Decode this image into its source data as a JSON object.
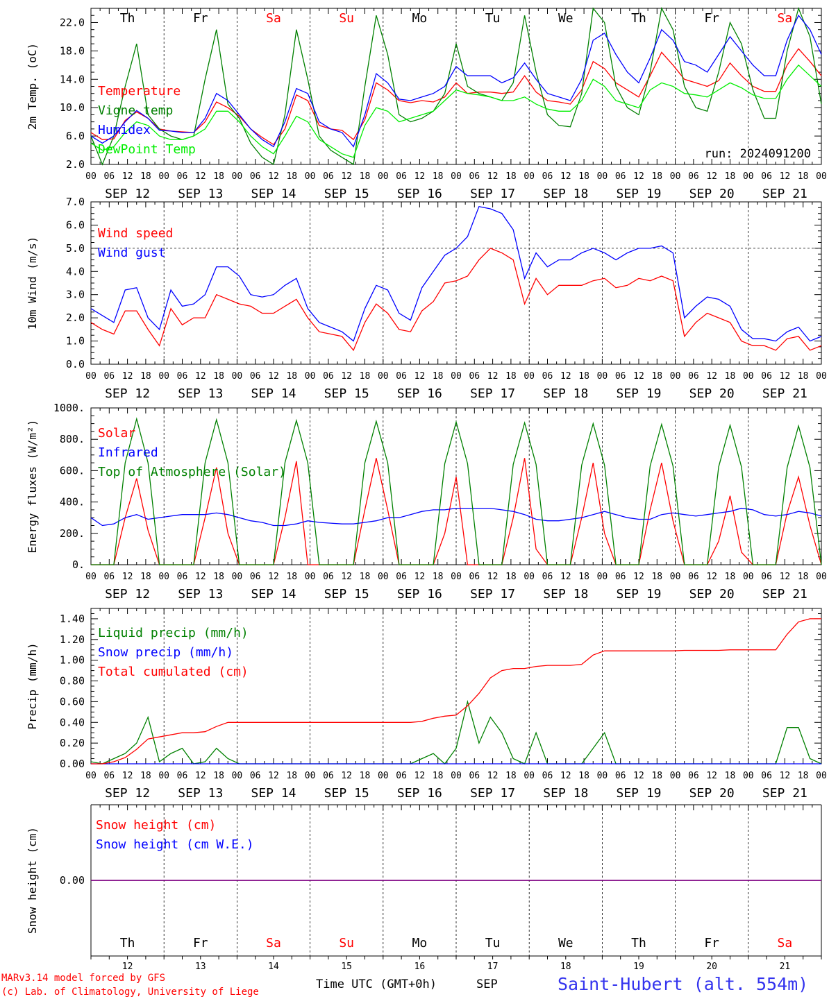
{
  "page": {
    "credit_line1": "MARv3.14 model forced by GFS",
    "credit_line2": "(c) Lab. of Climatology, University of Liege",
    "time_label": "Time UTC (GMT+0h)",
    "month_label": "SEP",
    "station": "Saint-Hubert (alt. 554m)",
    "run_label": "run: 2024091200"
  },
  "days": [
    {
      "abbr": "Th",
      "date": "SEP 12",
      "num": "12",
      "weekend": false
    },
    {
      "abbr": "Fr",
      "date": "SEP 13",
      "num": "13",
      "weekend": false
    },
    {
      "abbr": "Sa",
      "date": "SEP 14",
      "num": "14",
      "weekend": true
    },
    {
      "abbr": "Su",
      "date": "SEP 15",
      "num": "15",
      "weekend": true
    },
    {
      "abbr": "Mo",
      "date": "SEP 16",
      "num": "16",
      "weekend": false
    },
    {
      "abbr": "Tu",
      "date": "SEP 17",
      "num": "17",
      "weekend": false
    },
    {
      "abbr": "We",
      "date": "SEP 18",
      "num": "18",
      "weekend": false
    },
    {
      "abbr": "Th",
      "date": "SEP 19",
      "num": "19",
      "weekend": false
    },
    {
      "abbr": "Fr",
      "date": "SEP 20",
      "num": "20",
      "weekend": false
    },
    {
      "abbr": "Sa",
      "date": "SEP 21",
      "num": "21",
      "weekend": true
    }
  ],
  "hour_ticks": [
    "00",
    "06",
    "12",
    "18"
  ],
  "colors": {
    "red": "#ff0000",
    "green": "#008000",
    "blue": "#0000ff",
    "lightgreen": "#00ee00",
    "purple": "#800080",
    "station": "#3333ee",
    "weekend": "#ff0000"
  },
  "chart_data": [
    {
      "id": "temp",
      "type": "line",
      "ylabel": "2m Temp. (oC)",
      "ylim": [
        2,
        24
      ],
      "yticks": [
        "2.0",
        "6.0",
        "10.0",
        "14.0",
        "18.0",
        "22.0"
      ],
      "ytick_values": [
        2,
        6,
        10,
        14,
        18,
        22
      ],
      "grid": "vertical dashed at day boundaries",
      "x_start": "SEP 12 00",
      "x_step_hours": 3,
      "series": [
        {
          "name": "Temperature",
          "color": "#ff0000",
          "values": [
            6.5,
            5.5,
            5.6,
            8.2,
            9.4,
            8.5,
            7.0,
            6.7,
            6.6,
            6.5,
            8.0,
            10.8,
            10.0,
            8.8,
            7.0,
            5.8,
            4.8,
            7.0,
            11.8,
            11.0,
            7.5,
            7.0,
            6.8,
            5.5,
            8.3,
            13.5,
            12.5,
            11.0,
            10.7,
            11.0,
            10.8,
            11.5,
            13.5,
            12.0,
            12.2,
            12.2,
            12.0,
            12.2,
            14.5,
            12.2,
            11.0,
            10.8,
            10.5,
            12.5,
            16.5,
            15.5,
            13.5,
            12.5,
            11.5,
            14.5,
            17.8,
            16.0,
            14.0,
            13.5,
            13.0,
            13.8,
            16.3,
            14.5,
            13.0,
            12.3,
            12.3,
            16.0,
            18.3,
            16.5,
            14.5
          ]
        },
        {
          "name": "Vigne temp",
          "color": "#008000",
          "values": [
            6.0,
            2.0,
            6.0,
            13.0,
            19.0,
            9.0,
            7.0,
            6.0,
            5.5,
            6.0,
            14.0,
            21.0,
            10.5,
            8.5,
            5.0,
            3.0,
            2.0,
            9.0,
            21.0,
            14.0,
            6.0,
            4.0,
            3.0,
            2.0,
            13.0,
            23.0,
            17.5,
            9.0,
            8.0,
            8.5,
            9.5,
            12.0,
            19.0,
            13.0,
            12.0,
            11.5,
            11.0,
            13.5,
            23.0,
            15.0,
            9.0,
            7.5,
            7.3,
            12.0,
            24.0,
            22.0,
            13.0,
            10.0,
            9.0,
            15.0,
            24.0,
            21.0,
            13.0,
            10.0,
            9.5,
            15.0,
            22.0,
            19.0,
            12.5,
            8.5,
            8.5,
            18.0,
            24.0,
            20.0,
            10.5
          ]
        },
        {
          "name": "Humidex",
          "color": "#0000ff",
          "values": [
            6.0,
            5.0,
            6.0,
            8.0,
            9.6,
            8.5,
            6.8,
            6.7,
            6.5,
            6.5,
            8.5,
            12.0,
            11.0,
            9.0,
            7.0,
            5.5,
            4.5,
            8.0,
            12.7,
            12.0,
            8.0,
            7.0,
            6.5,
            4.5,
            9.0,
            14.8,
            13.5,
            11.2,
            11.0,
            11.5,
            12.0,
            13.0,
            15.8,
            14.5,
            14.5,
            14.5,
            13.5,
            14.2,
            16.3,
            14.0,
            12.0,
            11.5,
            11.0,
            14.0,
            19.5,
            20.5,
            17.5,
            15.0,
            13.5,
            17.0,
            21.0,
            19.5,
            16.5,
            16.0,
            15.0,
            17.5,
            20.0,
            18.0,
            16.0,
            14.5,
            14.5,
            19.5,
            23.0,
            21.0,
            17.5
          ]
        },
        {
          "name": "DewPoint Temp",
          "color": "#00ee00",
          "values": [
            5.0,
            4.0,
            4.5,
            6.5,
            8.0,
            7.5,
            6.0,
            5.5,
            5.5,
            6.0,
            7.0,
            9.5,
            9.5,
            8.0,
            6.0,
            4.5,
            3.5,
            6.0,
            8.8,
            8.0,
            5.5,
            4.5,
            3.5,
            3.0,
            7.5,
            10.0,
            9.5,
            8.0,
            8.5,
            9.0,
            9.5,
            11.0,
            12.5,
            12.0,
            11.8,
            11.5,
            11.0,
            11.0,
            11.5,
            10.5,
            9.8,
            9.5,
            9.5,
            11.0,
            14.0,
            13.0,
            11.0,
            10.5,
            10.0,
            12.5,
            13.5,
            13.0,
            12.0,
            11.8,
            11.5,
            12.5,
            13.5,
            12.8,
            11.8,
            11.3,
            11.3,
            14.0,
            16.0,
            14.5,
            13.0
          ]
        }
      ]
    },
    {
      "id": "wind",
      "type": "line",
      "ylabel": "10m Wind (m/s)",
      "ylim": [
        0,
        7
      ],
      "yticks": [
        "0.0",
        "1.0",
        "2.0",
        "3.0",
        "4.0",
        "5.0",
        "6.0",
        "7.0"
      ],
      "ytick_values": [
        0,
        1,
        2,
        3,
        4,
        5,
        6,
        7
      ],
      "hline": 5,
      "x_start": "SEP 12 00",
      "x_step_hours": 3,
      "series": [
        {
          "name": "Wind speed",
          "color": "#ff0000",
          "values": [
            1.8,
            1.5,
            1.3,
            2.3,
            2.3,
            1.5,
            0.8,
            2.4,
            1.7,
            2.0,
            2.0,
            3.0,
            2.8,
            2.6,
            2.5,
            2.2,
            2.2,
            2.5,
            2.8,
            2.0,
            1.4,
            1.3,
            1.2,
            0.6,
            1.8,
            2.6,
            2.2,
            1.5,
            1.4,
            2.3,
            2.7,
            3.5,
            3.6,
            3.8,
            4.5,
            5.0,
            4.8,
            4.5,
            2.6,
            3.7,
            3.0,
            3.4,
            3.4,
            3.4,
            3.6,
            3.7,
            3.3,
            3.4,
            3.7,
            3.6,
            3.8,
            3.6,
            1.2,
            1.8,
            2.2,
            2.0,
            1.8,
            1.0,
            0.8,
            0.8,
            0.6,
            1.1,
            1.2,
            0.6,
            0.8
          ]
        },
        {
          "name": "Wind gust",
          "color": "#0000ff",
          "values": [
            2.4,
            2.1,
            1.8,
            3.2,
            3.3,
            2.0,
            1.5,
            3.2,
            2.5,
            2.6,
            3.0,
            4.2,
            4.2,
            3.8,
            3.0,
            2.9,
            3.0,
            3.4,
            3.7,
            2.4,
            1.8,
            1.6,
            1.4,
            1.0,
            2.4,
            3.4,
            3.2,
            2.2,
            1.9,
            3.3,
            4.0,
            4.7,
            5.0,
            5.5,
            6.8,
            6.7,
            6.5,
            5.8,
            3.7,
            4.8,
            4.2,
            4.5,
            4.5,
            4.8,
            5.0,
            4.8,
            4.5,
            4.8,
            5.0,
            5.0,
            5.1,
            4.8,
            2.0,
            2.5,
            2.9,
            2.8,
            2.5,
            1.5,
            1.1,
            1.1,
            1.0,
            1.4,
            1.6,
            1.0,
            1.2
          ]
        }
      ]
    },
    {
      "id": "energy",
      "type": "line",
      "ylabel": "Energy fluxes (W/m²)",
      "ylim": [
        0,
        1000
      ],
      "yticks": [
        "0.",
        "200.",
        "400.",
        "600.",
        "800.",
        "1000."
      ],
      "ytick_values": [
        0,
        200,
        400,
        600,
        800,
        1000
      ],
      "x_start": "SEP 12 00",
      "x_step_hours": 3,
      "series": [
        {
          "name": "Solar",
          "color": "#ff0000",
          "values": [
            0,
            0,
            0,
            300,
            550,
            220,
            0,
            0,
            0,
            0,
            300,
            620,
            200,
            0,
            0,
            0,
            0,
            300,
            660,
            0,
            0,
            0,
            0,
            0,
            350,
            680,
            350,
            0,
            0,
            0,
            0,
            200,
            560,
            0,
            0,
            0,
            0,
            300,
            680,
            100,
            0,
            0,
            0,
            300,
            650,
            200,
            0,
            0,
            0,
            350,
            650,
            280,
            0,
            0,
            0,
            150,
            440,
            80,
            0,
            0,
            0,
            330,
            560,
            250,
            0
          ]
        },
        {
          "name": "Infrared",
          "color": "#0000ff",
          "values": [
            300,
            250,
            260,
            300,
            320,
            290,
            300,
            310,
            320,
            320,
            320,
            330,
            320,
            300,
            280,
            270,
            250,
            250,
            260,
            280,
            270,
            265,
            260,
            260,
            270,
            280,
            300,
            300,
            320,
            340,
            350,
            350,
            360,
            360,
            360,
            360,
            350,
            340,
            320,
            290,
            280,
            280,
            290,
            300,
            320,
            340,
            320,
            300,
            290,
            290,
            320,
            330,
            320,
            310,
            320,
            330,
            340,
            360,
            350,
            320,
            310,
            320,
            340,
            330,
            310
          ]
        },
        {
          "name": "Top of Atmosphere (Solar)",
          "color": "#008000",
          "values": [
            0,
            0,
            0,
            650,
            930,
            650,
            0,
            0,
            0,
            0,
            650,
            925,
            650,
            0,
            0,
            0,
            0,
            650,
            920,
            650,
            0,
            0,
            0,
            0,
            650,
            915,
            650,
            0,
            0,
            0,
            0,
            645,
            910,
            645,
            0,
            0,
            0,
            640,
            905,
            640,
            0,
            0,
            0,
            635,
            900,
            635,
            0,
            0,
            0,
            630,
            895,
            630,
            0,
            0,
            0,
            625,
            890,
            625,
            0,
            0,
            0,
            620,
            885,
            620,
            0
          ]
        }
      ]
    },
    {
      "id": "precip",
      "type": "line",
      "ylabel": "Precip (mm/h)",
      "ylim": [
        0,
        1.5
      ],
      "yticks": [
        "0.00",
        "0.20",
        "0.40",
        "0.60",
        "0.80",
        "1.00",
        "1.20",
        "1.40"
      ],
      "ytick_values": [
        0,
        0.2,
        0.4,
        0.6,
        0.8,
        1.0,
        1.2,
        1.4
      ],
      "x_start": "SEP 12 00",
      "x_step_hours": 3,
      "series": [
        {
          "name": "Liquid precip (mm/h)",
          "color": "#008000",
          "values": [
            0.02,
            0,
            0.05,
            0.1,
            0.2,
            0.45,
            0.02,
            0.1,
            0.15,
            0,
            0.02,
            0.15,
            0.05,
            0,
            0,
            0,
            0,
            0,
            0,
            0,
            0,
            0,
            0,
            0,
            0,
            0,
            0,
            0,
            0,
            0.05,
            0.1,
            0,
            0.15,
            0.6,
            0.2,
            0.45,
            0.3,
            0.05,
            0,
            0.3,
            0,
            0,
            0,
            0,
            0.15,
            0.3,
            0,
            0,
            0,
            0,
            0,
            0,
            0,
            0,
            0,
            0,
            0,
            0,
            0,
            0,
            0,
            0.35,
            0.35,
            0.05,
            0
          ]
        },
        {
          "name": "Snow precip (mm/h)",
          "color": "#0000ff",
          "values": [
            0,
            0,
            0,
            0,
            0,
            0,
            0,
            0,
            0,
            0,
            0,
            0,
            0,
            0,
            0,
            0,
            0,
            0,
            0,
            0,
            0,
            0,
            0,
            0,
            0,
            0,
            0,
            0,
            0,
            0,
            0,
            0,
            0,
            0,
            0,
            0,
            0,
            0,
            0,
            0,
            0,
            0,
            0,
            0,
            0,
            0,
            0,
            0,
            0,
            0,
            0,
            0,
            0,
            0,
            0,
            0,
            0,
            0,
            0,
            0,
            0,
            0,
            0,
            0,
            0
          ]
        },
        {
          "name": "Total cumulated (cm)",
          "color": "#ff0000",
          "values": [
            0,
            0,
            0.02,
            0.06,
            0.14,
            0.24,
            0.26,
            0.28,
            0.3,
            0.3,
            0.31,
            0.36,
            0.4,
            0.4,
            0.4,
            0.4,
            0.4,
            0.4,
            0.4,
            0.4,
            0.4,
            0.4,
            0.4,
            0.4,
            0.4,
            0.4,
            0.4,
            0.4,
            0.4,
            0.41,
            0.44,
            0.46,
            0.47,
            0.56,
            0.68,
            0.83,
            0.9,
            0.92,
            0.92,
            0.94,
            0.95,
            0.95,
            0.95,
            0.96,
            1.05,
            1.09,
            1.09,
            1.09,
            1.09,
            1.09,
            1.09,
            1.09,
            1.095,
            1.095,
            1.095,
            1.095,
            1.1,
            1.1,
            1.1,
            1.1,
            1.1,
            1.25,
            1.37,
            1.4,
            1.4
          ]
        }
      ]
    },
    {
      "id": "snow",
      "type": "line",
      "ylabel": "Snow height (cm)",
      "ylim": [
        -1,
        1
      ],
      "yticks": [
        "0.00"
      ],
      "ytick_values": [
        0
      ],
      "x_start": "SEP 12 00",
      "x_step_hours": 3,
      "series": [
        {
          "name": "Snow height (cm)",
          "color": "#ff0000",
          "values": [
            0,
            0
          ]
        },
        {
          "name": "Snow height (cm W.E.)",
          "color": "#0000ff",
          "values": [
            0,
            0
          ]
        }
      ]
    }
  ]
}
